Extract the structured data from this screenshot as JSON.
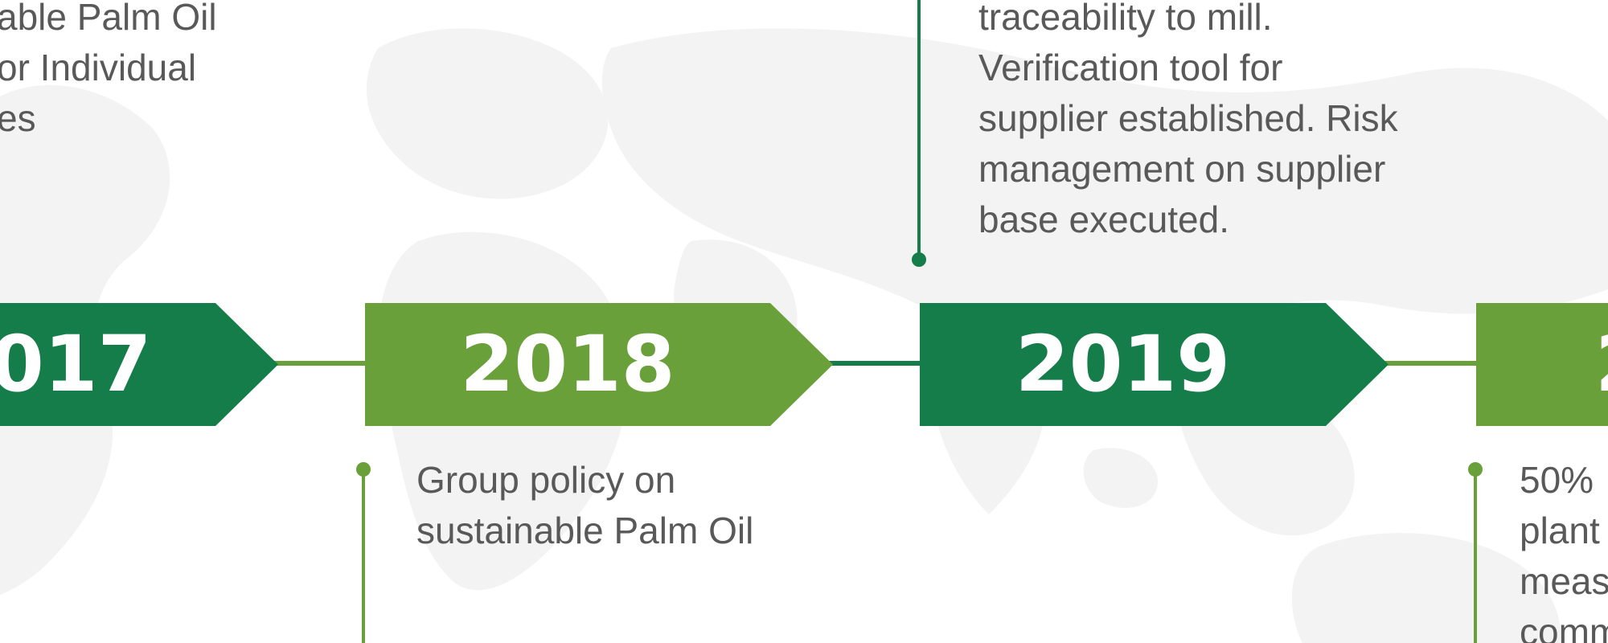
{
  "timeline": {
    "colors": {
      "dark_green": "#157d49",
      "light_green": "#6aa03a",
      "text_gray": "#595959",
      "map_gray": "#f3f3f3"
    },
    "years": {
      "y2017": "017",
      "y2018": "2018",
      "y2019": "2019",
      "y2020": "2"
    },
    "descriptions": {
      "d2017": [
        "able Palm Oil",
        "or Individual",
        "es"
      ],
      "d2018": [
        "Group policy on",
        "sustainable Palm Oil"
      ],
      "d2019": [
        "traceability to mill.",
        "Verification tool for",
        "supplier established. Risk",
        "management on supplier",
        "base executed."
      ],
      "d2020": [
        "50%",
        "plant",
        "meas",
        "comm"
      ]
    }
  }
}
